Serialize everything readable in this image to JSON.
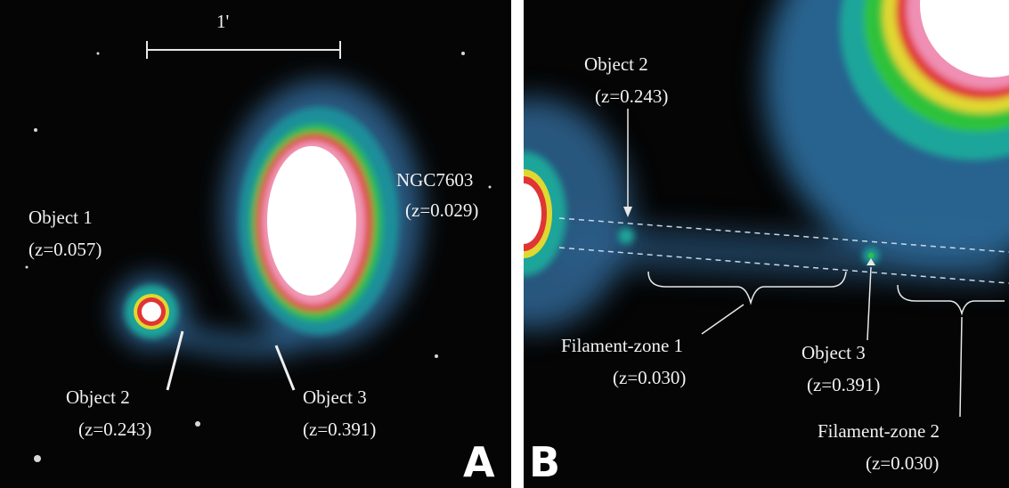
{
  "panel_a": {
    "letter": "A",
    "scale_label": "1'",
    "labels": {
      "ngc_name": "NGC7603",
      "ngc_z": "(z=0.029)",
      "obj1_name": "Object 1",
      "obj1_z": "(z=0.057)",
      "obj2_name": "Object 2",
      "obj2_z": "(z=0.243)",
      "obj3_name": "Object 3",
      "obj3_z": "(z=0.391)"
    }
  },
  "panel_b": {
    "letter": "B",
    "labels": {
      "obj2_name": "Object 2",
      "obj2_z": "(z=0.243)",
      "fz1_name": "Filament-zone 1",
      "fz1_z": "(z=0.030)",
      "obj3_name": "Object 3",
      "obj3_z": "(z=0.391)",
      "fz2_name": "Filament-zone 2",
      "fz2_z": "(z=0.030)"
    }
  },
  "colors": {
    "background": "#050505",
    "halo_blue": "#2c6fa0",
    "teal": "#1fa59a",
    "green": "#2fc23a",
    "yellow": "#e0d830",
    "red": "#e03535",
    "pink": "#f08fb4",
    "core_white": "#ffffff"
  }
}
